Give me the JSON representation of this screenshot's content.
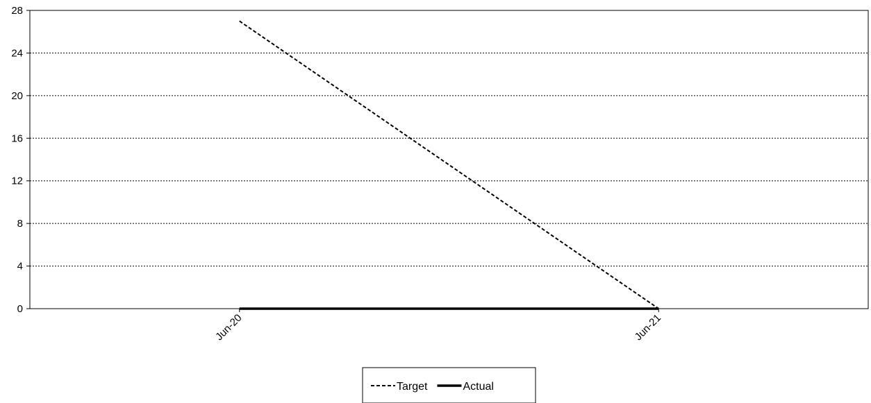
{
  "chart_data": {
    "type": "line",
    "title": "",
    "xlabel": "",
    "ylabel": "",
    "categories": [
      "Jun-20",
      "Jun-21"
    ],
    "y_ticks": [
      0,
      4,
      8,
      12,
      16,
      20,
      24,
      28
    ],
    "ylim": [
      0,
      28
    ],
    "grid": "horizontal dotted",
    "legend": "bottom-center",
    "series": [
      {
        "name": "Target",
        "style": "dashed",
        "color": "#000000",
        "values": [
          27,
          0
        ]
      },
      {
        "name": "Actual",
        "style": "solid-thick",
        "color": "#000000",
        "values": [
          0,
          0
        ]
      }
    ]
  }
}
